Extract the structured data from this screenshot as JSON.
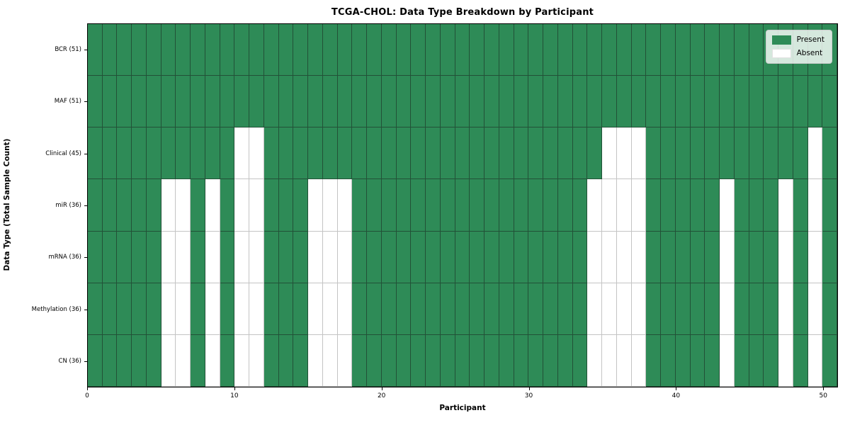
{
  "title": "TCGA-CHOL: Data Type Breakdown by Participant",
  "axes": {
    "x_label": "Participant",
    "y_label": "Data Type (Total Sample Count)"
  },
  "legend": {
    "items": [
      {
        "label": "Present",
        "color": "#2e8b57"
      },
      {
        "label": "Absent",
        "color": "#ffffff"
      }
    ]
  },
  "colors": {
    "present": "#2e8b57",
    "absent": "#ffffff",
    "grid_on_present": "rgba(25,35,30,0.55)",
    "grid_on_absent": "#c4c4c4"
  },
  "chart_data": {
    "type": "heatmap",
    "title": "TCGA-CHOL: Data Type Breakdown by Participant",
    "xlabel": "Participant",
    "ylabel": "Data Type (Total Sample Count)",
    "x_range": [
      0,
      51
    ],
    "n_participants": 51,
    "x_ticks": [
      0,
      10,
      20,
      30,
      40,
      50
    ],
    "grid": true,
    "legend_position": "upper right",
    "legend_entries": [
      "Present",
      "Absent"
    ],
    "value_encoding": {
      "present": 1,
      "absent": 0
    },
    "rows": [
      {
        "label": "BCR (51)",
        "present_count": 51,
        "absent_participants": []
      },
      {
        "label": "MAF (51)",
        "present_count": 51,
        "absent_participants": []
      },
      {
        "label": "Clinical (45)",
        "present_count": 45,
        "absent_participants": [
          10,
          11,
          35,
          36,
          37,
          49
        ]
      },
      {
        "label": "miR (36)",
        "present_count": 36,
        "absent_participants": [
          5,
          6,
          8,
          10,
          11,
          15,
          16,
          17,
          34,
          35,
          36,
          37,
          43,
          47,
          49
        ]
      },
      {
        "label": "mRNA (36)",
        "present_count": 36,
        "absent_participants": [
          5,
          6,
          8,
          10,
          11,
          15,
          16,
          17,
          34,
          35,
          36,
          37,
          43,
          47,
          49
        ]
      },
      {
        "label": "Methylation (36)",
        "present_count": 36,
        "absent_participants": [
          5,
          6,
          8,
          10,
          11,
          15,
          16,
          17,
          34,
          35,
          36,
          37,
          43,
          47,
          49
        ]
      },
      {
        "label": "CN (36)",
        "present_count": 36,
        "absent_participants": [
          5,
          6,
          8,
          10,
          11,
          15,
          16,
          17,
          34,
          35,
          36,
          37,
          43,
          47,
          49
        ]
      }
    ]
  }
}
